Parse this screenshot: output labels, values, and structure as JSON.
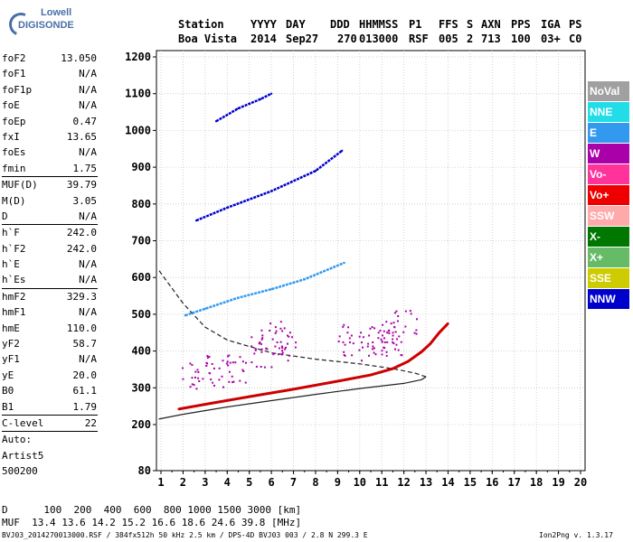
{
  "logo": {
    "line1": "Lowell",
    "line2": "DIGISONDE"
  },
  "header": {
    "labels": {
      "station": "Station",
      "yyyy": "YYYY",
      "day": "DAY",
      "ddd": "DDD",
      "hhmmss": "HHMMSS",
      "p1": "P1",
      "ffs": "FFS",
      "s": "S",
      "axn": "AXN",
      "pps": "PPS",
      "iga": "IGA",
      "ps": "PS"
    },
    "values": {
      "station": "Boa Vista",
      "yyyy": "2014",
      "day": "Sep27",
      "ddd": "270",
      "hhmmss": "013000",
      "p1": "RSF",
      "ffs": "005",
      "s": "2",
      "axn": "713",
      "pps": "100",
      "iga": "03+",
      "ps": "C0"
    }
  },
  "params": [
    {
      "label": "foF2",
      "value": "13.050"
    },
    {
      "label": "foF1",
      "value": "N/A"
    },
    {
      "label": "foF1p",
      "value": "N/A"
    },
    {
      "label": "foE",
      "value": "N/A"
    },
    {
      "label": "foEp",
      "value": "0.47"
    },
    {
      "label": "fxI",
      "value": "13.65"
    },
    {
      "label": "foEs",
      "value": "N/A"
    },
    {
      "label": "fmin",
      "value": "1.75"
    },
    {
      "label": "MUF(D)",
      "value": "39.79"
    },
    {
      "label": "M(D)",
      "value": "3.05"
    },
    {
      "label": "D",
      "value": "N/A"
    },
    {
      "label": "h`F",
      "value": "242.0"
    },
    {
      "label": "h`F2",
      "value": "242.0"
    },
    {
      "label": "h`E",
      "value": "N/A"
    },
    {
      "label": "h`Es",
      "value": "N/A"
    },
    {
      "label": "hmF2",
      "value": "329.3"
    },
    {
      "label": "hmF1",
      "value": "N/A"
    },
    {
      "label": "hmE",
      "value": "110.0"
    },
    {
      "label": "yF2",
      "value": "58.7"
    },
    {
      "label": "yF1",
      "value": "N/A"
    },
    {
      "label": "yE",
      "value": "20.0"
    },
    {
      "label": "B0",
      "value": "61.1"
    },
    {
      "label": "B1",
      "value": "1.79"
    },
    {
      "label": "C-level",
      "value": "22"
    },
    {
      "label": "Auto:",
      "value": ""
    },
    {
      "label": "Artist5",
      "value": ""
    },
    {
      "label": "500200",
      "value": ""
    }
  ],
  "legend": [
    {
      "label": "NoVal",
      "color": "#a0a0a0"
    },
    {
      "label": "NNE",
      "color": "#22dde8"
    },
    {
      "label": "E",
      "color": "#3399ee"
    },
    {
      "label": "W",
      "color": "#aa00aa"
    },
    {
      "label": "Vo-",
      "color": "#ff3399"
    },
    {
      "label": "Vo+",
      "color": "#ee0000"
    },
    {
      "label": "SSW",
      "color": "#ffaaaa"
    },
    {
      "label": "X-",
      "color": "#007700"
    },
    {
      "label": "X+",
      "color": "#66bb66"
    },
    {
      "label": "SSE",
      "color": "#cccc00"
    },
    {
      "label": "NNW",
      "color": "#0000cc"
    }
  ],
  "muf_table": {
    "d_label": "D",
    "d_values": "100  200  400  600  800 1000 1500 3000 [km]",
    "muf_label": "MUF",
    "muf_values": "13.4 13.6 14.2 15.2 16.6 18.6 24.6 39.8 [MHz]"
  },
  "footer": {
    "left": "BVJ03_2014270013000.RSF / 384fx512h 50 kHz 2.5 km / DPS-4D BVJ03 003 / 2.8 N 299.3 E",
    "right": "Ion2Png v. 1.3.17"
  },
  "chart_data": {
    "type": "scatter",
    "xlabel": "",
    "ylabel": "",
    "xlim": [
      0.9,
      20.1
    ],
    "ylim": [
      80,
      1210
    ],
    "x_ticks": [
      1,
      2,
      3,
      4,
      5,
      6,
      7,
      8,
      9,
      10,
      11,
      12,
      13,
      14,
      15,
      16,
      17,
      18,
      19,
      20
    ],
    "y_ticks": [
      80,
      200,
      300,
      400,
      500,
      600,
      700,
      800,
      900,
      1000,
      1100,
      1200
    ],
    "grid": true,
    "traces": [
      {
        "name": "o-trace",
        "color": "#cc0000",
        "points": [
          [
            1.8,
            242
          ],
          [
            3,
            255
          ],
          [
            5,
            276
          ],
          [
            7,
            296
          ],
          [
            9,
            318
          ],
          [
            10.5,
            335
          ],
          [
            11.5,
            352
          ],
          [
            12.2,
            372
          ],
          [
            12.8,
            398
          ],
          [
            13.2,
            420
          ],
          [
            13.6,
            450
          ],
          [
            14,
            475
          ]
        ]
      },
      {
        "name": "second-hop",
        "color": "#3399ee",
        "points": [
          [
            2.1,
            497
          ],
          [
            3,
            515
          ],
          [
            4.5,
            545
          ],
          [
            6,
            568
          ],
          [
            7.5,
            595
          ],
          [
            9.3,
            640
          ]
        ]
      },
      {
        "name": "third-hop",
        "color": "#0000cc",
        "points": [
          [
            2.6,
            755
          ],
          [
            4,
            790
          ],
          [
            6,
            835
          ],
          [
            8,
            890
          ],
          [
            9.2,
            945
          ]
        ]
      },
      {
        "name": "fourth-hop",
        "color": "#0000cc",
        "points": [
          [
            3.5,
            1025
          ],
          [
            4.5,
            1060
          ],
          [
            5.5,
            1085
          ],
          [
            6,
            1100
          ]
        ]
      },
      {
        "name": "spread-F",
        "color": "#aa00aa",
        "points": [
          [
            2.5,
            330
          ],
          [
            3.5,
            345
          ],
          [
            4.5,
            355
          ],
          [
            5.5,
            400
          ],
          [
            6,
            440
          ],
          [
            6.5,
            420
          ],
          [
            9.5,
            430
          ],
          [
            10.5,
            420
          ],
          [
            11,
            440
          ],
          [
            11.5,
            430
          ],
          [
            12,
            470
          ]
        ]
      }
    ],
    "profile_solid": [
      [
        0.9,
        215
      ],
      [
        2,
        228
      ],
      [
        4,
        248
      ],
      [
        6,
        265
      ],
      [
        8,
        282
      ],
      [
        10,
        298
      ],
      [
        12,
        312
      ],
      [
        12.8,
        322
      ],
      [
        13,
        330
      ]
    ],
    "profile_dashed": [
      [
        13,
        330
      ],
      [
        12.5,
        340
      ],
      [
        11.5,
        352
      ],
      [
        10,
        365
      ],
      [
        8,
        378
      ],
      [
        6,
        395
      ],
      [
        4,
        430
      ],
      [
        3,
        465
      ],
      [
        2,
        530
      ],
      [
        1.2,
        595
      ],
      [
        0.9,
        620
      ]
    ]
  }
}
